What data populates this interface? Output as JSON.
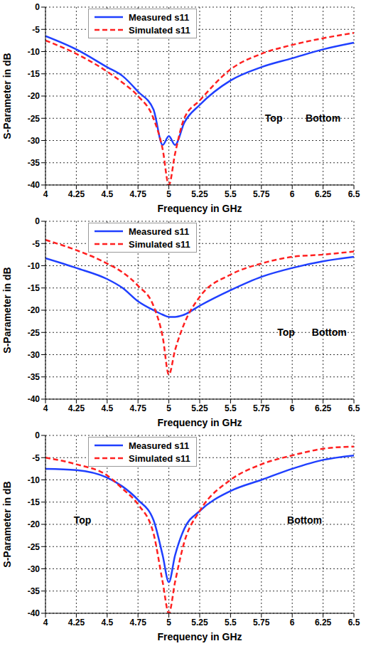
{
  "chart_data": [
    {
      "type": "line",
      "x_label": "Frequency in GHz",
      "y_label": "S-Parameter in dB",
      "x": [
        4,
        4.25,
        4.5,
        4.625,
        4.75,
        4.875,
        4.95,
        5,
        5.05,
        5.125,
        5.25,
        5.5,
        5.75,
        6,
        6.25,
        6.5
      ],
      "series": [
        {
          "name": "Measured s11",
          "color": "#1f3fff",
          "line_style": "solid",
          "values": [
            -6.5,
            -9.5,
            -13.5,
            -15.5,
            -19,
            -23,
            -31,
            -29,
            -31,
            -26,
            -22,
            -16.5,
            -13.5,
            -11.5,
            -9.5,
            -8
          ]
        },
        {
          "name": "Simulated s11",
          "color": "#ff2020",
          "line_style": "dashed",
          "values": [
            -7.5,
            -10.5,
            -14.5,
            -17,
            -20,
            -25,
            -32,
            -40,
            -33,
            -25,
            -21,
            -14,
            -10.5,
            -8.5,
            -7,
            -5.8
          ]
        }
      ],
      "xlim": [
        4,
        6.5
      ],
      "xticks": [
        4,
        4.25,
        4.5,
        4.75,
        5,
        5.25,
        5.5,
        5.75,
        6,
        6.25,
        6.5
      ],
      "ylim": [
        -40,
        0
      ],
      "yticks": [
        -40,
        -35,
        -30,
        -25,
        -20,
        -15,
        -10,
        -5,
        0
      ],
      "grid": true,
      "legend": "top",
      "annotations": [
        {
          "text": "Top",
          "x": 5.85,
          "y": -25
        },
        {
          "text": "Bottom",
          "x": 6.25,
          "y": -25
        }
      ]
    },
    {
      "type": "line",
      "x_label": "Frequency in GHz",
      "y_label": "S-Parameter in dB",
      "x": [
        4,
        4.25,
        4.5,
        4.625,
        4.75,
        4.875,
        4.95,
        5,
        5.05,
        5.125,
        5.25,
        5.5,
        5.75,
        6,
        6.25,
        6.5
      ],
      "series": [
        {
          "name": "Measured s11",
          "color": "#1f3fff",
          "line_style": "solid",
          "values": [
            -8.3,
            -10.5,
            -13,
            -15,
            -18,
            -20,
            -21,
            -21.5,
            -21.5,
            -21,
            -19,
            -15.5,
            -12.5,
            -10.5,
            -9,
            -8
          ]
        },
        {
          "name": "Simulated s11",
          "color": "#ff2020",
          "line_style": "dashed",
          "values": [
            -4.2,
            -6.5,
            -9.5,
            -11.5,
            -14.5,
            -19,
            -26,
            -34.5,
            -29,
            -23,
            -17,
            -12,
            -9.5,
            -8,
            -7.5,
            -6.8
          ]
        }
      ],
      "xlim": [
        4,
        6.5
      ],
      "xticks": [
        4,
        4.25,
        4.5,
        4.75,
        5,
        5.25,
        5.5,
        5.75,
        6,
        6.25,
        6.5
      ],
      "ylim": [
        -40,
        0
      ],
      "yticks": [
        -40,
        -35,
        -30,
        -25,
        -20,
        -15,
        -10,
        -5,
        0
      ],
      "grid": true,
      "legend": "top",
      "annotations": [
        {
          "text": "Top",
          "x": 5.95,
          "y": -25
        },
        {
          "text": "Bottom",
          "x": 6.3,
          "y": -25
        }
      ]
    },
    {
      "type": "line",
      "x_label": "Frequency in GHz",
      "y_label": "S-Parameter in dB",
      "x": [
        4,
        4.25,
        4.5,
        4.625,
        4.75,
        4.875,
        4.95,
        5,
        5.05,
        5.125,
        5.25,
        5.5,
        5.75,
        6,
        6.25,
        6.5
      ],
      "series": [
        {
          "name": "Measured s11",
          "color": "#1f3fff",
          "line_style": "solid",
          "values": [
            -7.5,
            -7.8,
            -9.5,
            -11.5,
            -14.5,
            -19,
            -27,
            -33,
            -27,
            -21,
            -17,
            -12.5,
            -10,
            -7.5,
            -5.5,
            -4.5
          ]
        },
        {
          "name": "Simulated s11",
          "color": "#ff2020",
          "line_style": "dashed",
          "values": [
            -5,
            -6.5,
            -9,
            -12,
            -15.5,
            -22,
            -33,
            -40,
            -33,
            -24,
            -17,
            -10,
            -6.5,
            -4.5,
            -3,
            -2.5
          ]
        }
      ],
      "xlim": [
        4,
        6.5
      ],
      "xticks": [
        4,
        4.25,
        4.5,
        4.75,
        5,
        5.25,
        5.5,
        5.75,
        6,
        6.25,
        6.5
      ],
      "ylim": [
        -40,
        0
      ],
      "yticks": [
        -40,
        -35,
        -30,
        -25,
        -20,
        -15,
        -10,
        -5,
        0
      ],
      "grid": true,
      "legend": "top",
      "annotations": [
        {
          "text": "Top",
          "x": 4.3,
          "y": -19
        },
        {
          "text": "Bottom",
          "x": 6.1,
          "y": -19
        }
      ]
    }
  ]
}
